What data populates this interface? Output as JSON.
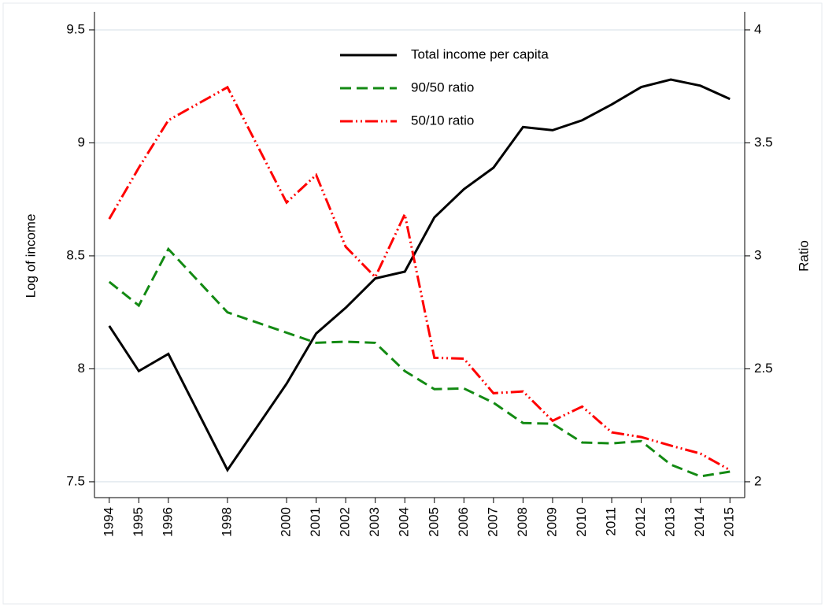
{
  "chart_data": {
    "type": "line",
    "x": [
      1994,
      1995,
      1996,
      1998,
      2000,
      2001,
      2002,
      2003,
      2004,
      2005,
      2006,
      2007,
      2008,
      2009,
      2010,
      2011,
      2012,
      2013,
      2014,
      2015
    ],
    "series": [
      {
        "name": "Total income per capita",
        "color": "#000000",
        "style": "solid",
        "axis": "y",
        "values": [
          8.19,
          7.99,
          8.066,
          7.552,
          7.934,
          8.156,
          8.27,
          8.4,
          8.43,
          8.67,
          8.795,
          8.89,
          9.07,
          9.056,
          9.1,
          9.17,
          9.247,
          9.28,
          9.253,
          9.194
        ]
      },
      {
        "name": "90/50 ratio",
        "color": "#138a13",
        "style": "dashed",
        "axis": "y2",
        "values": [
          2.885,
          2.78,
          3.03,
          2.75,
          2.66,
          2.615,
          2.62,
          2.615,
          2.49,
          2.41,
          2.413,
          2.35,
          2.26,
          2.257,
          2.174,
          2.17,
          2.18,
          2.076,
          2.024,
          2.045
        ]
      },
      {
        "name": "50/10 ratio",
        "color": "#ff0000",
        "style": "dashdot",
        "axis": "y2",
        "values": [
          3.163,
          3.39,
          3.6,
          3.746,
          3.236,
          3.358,
          3.04,
          2.906,
          3.184,
          2.549,
          2.545,
          2.392,
          2.4,
          2.27,
          2.333,
          2.219,
          2.198,
          2.16,
          2.125,
          2.052
        ]
      }
    ],
    "xlim": [
      1993.5,
      2015.5
    ],
    "xticks": [
      1994,
      1995,
      1996,
      1998,
      2000,
      2001,
      2002,
      2003,
      2004,
      2005,
      2006,
      2007,
      2008,
      2009,
      2010,
      2011,
      2012,
      2013,
      2014,
      2015
    ],
    "ylim": [
      7.43,
      9.58
    ],
    "yticks": [
      7.5,
      8,
      8.5,
      9,
      9.5
    ],
    "y2lim": [
      1.93,
      4.08
    ],
    "y2ticks": [
      2,
      2.5,
      3,
      3.5,
      4
    ],
    "ylabel": "Log of income",
    "y2label": "Ratio",
    "grid": true,
    "legend_position": "top"
  }
}
